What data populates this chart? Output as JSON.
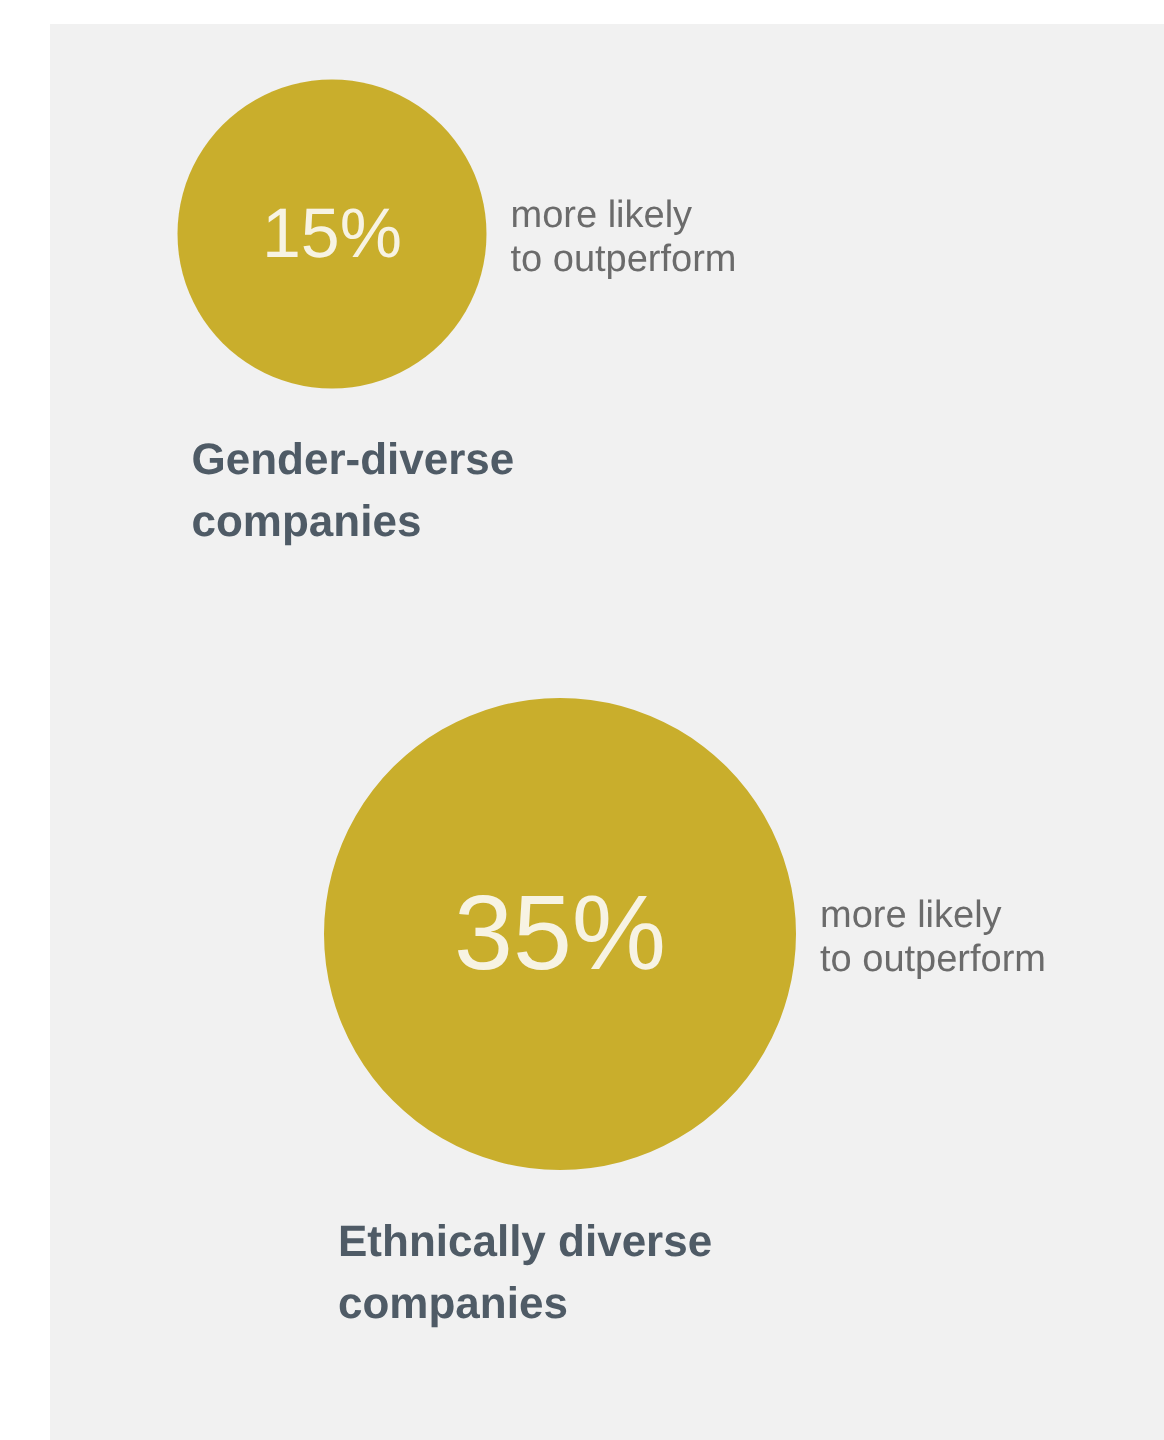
{
  "chart_data": {
    "type": "other",
    "categories": [
      "Gender-diverse companies",
      "Ethnically diverse companies"
    ],
    "values": [
      15,
      35
    ],
    "value_labels": [
      "15%",
      "35%"
    ],
    "color": "#c9ae2c",
    "annotations": [
      "more likely to outperform",
      "more likely to outperform"
    ]
  }
}
